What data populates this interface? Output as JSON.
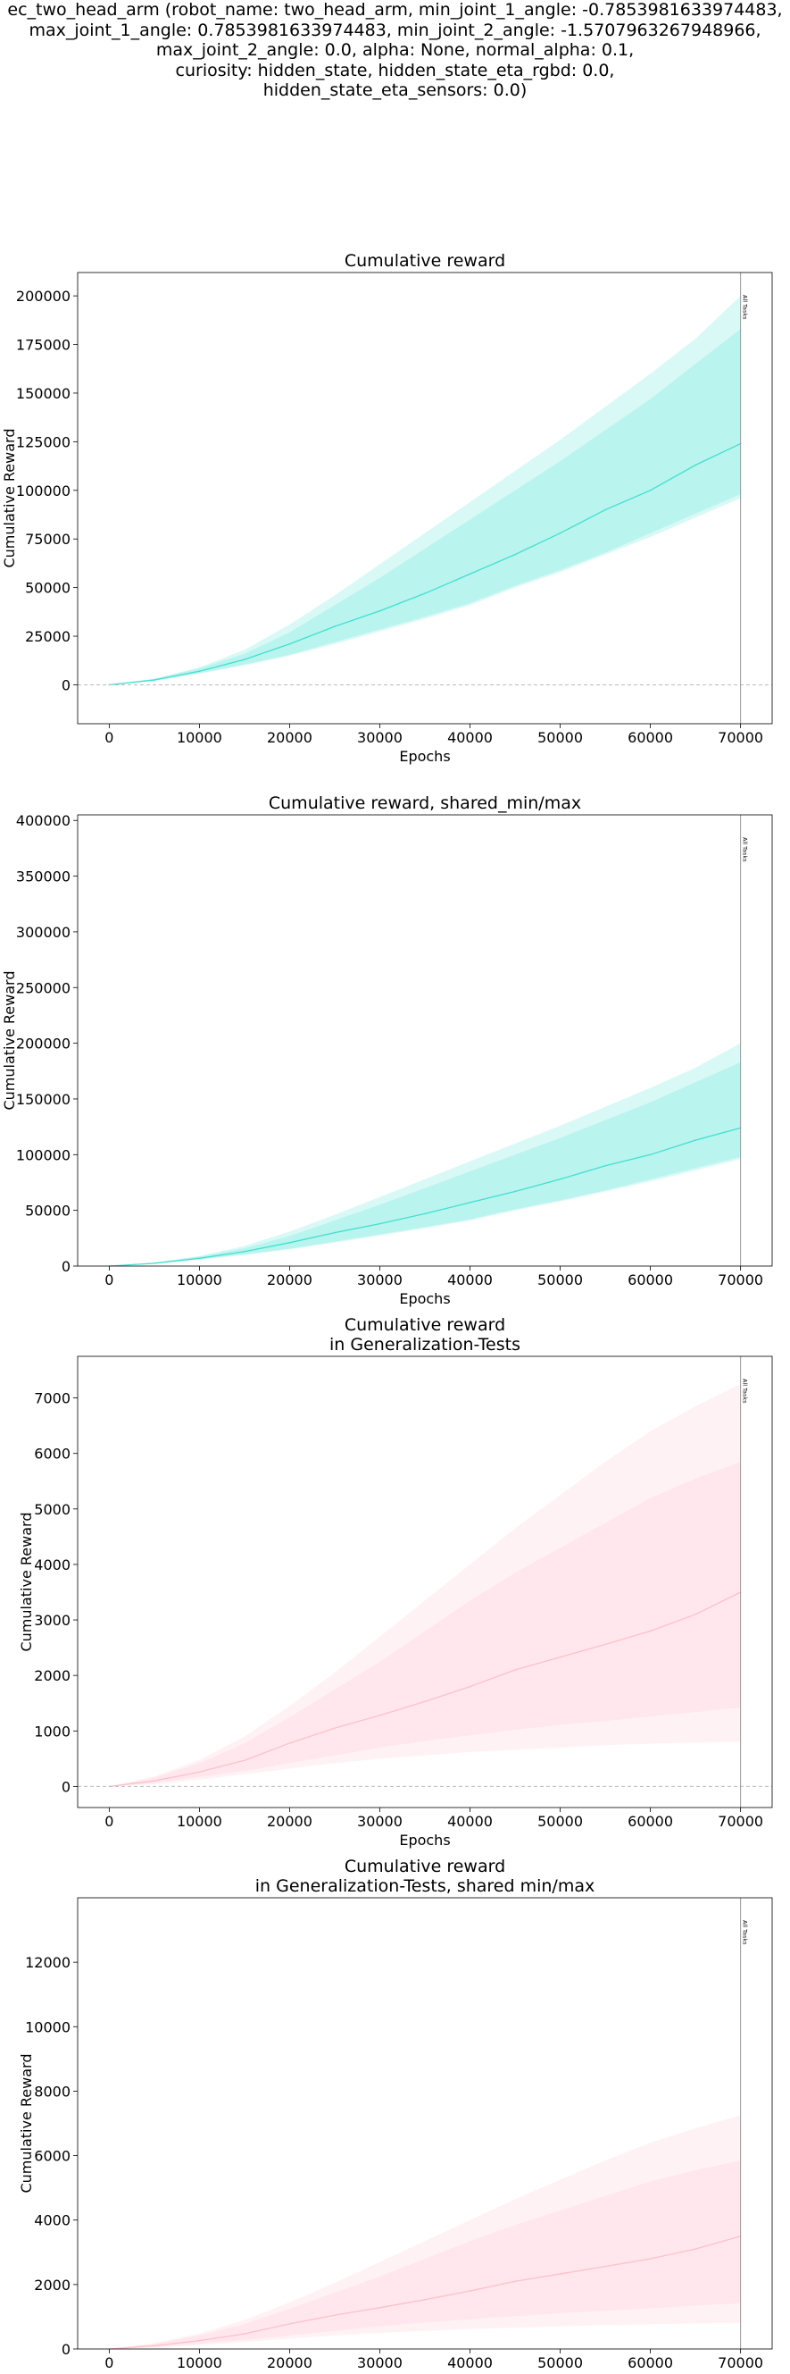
{
  "figure": {
    "suptitle": "ec_two_head_arm (robot_name: two_head_arm, min_joint_1_angle: -0.7853981633974483,\nmax_joint_1_angle: 0.7853981633974483, min_joint_2_angle: -1.5707963267948966,\nmax_joint_2_angle: 0.0, alpha: None, normal_alpha: 0.1,\ncuriosity: hidden_state, hidden_state_eta_rgbd: 0.0,\nhidden_state_eta_sensors: 0.0)"
  },
  "colors": {
    "train": "#40e0d0",
    "test": "#ffc0cb",
    "zero_line": "#bbbbbb",
    "vline": "#999999"
  },
  "chart_data": [
    {
      "type": "line",
      "title": "Cumulative reward",
      "xlabel": "Epochs",
      "ylabel": "Cumulative Reward",
      "xlim": [
        -3500,
        73500
      ],
      "ylim": [
        -20000,
        212000
      ],
      "xticks": [
        0,
        10000,
        20000,
        30000,
        40000,
        50000,
        60000,
        70000
      ],
      "yticks": [
        0,
        25000,
        50000,
        75000,
        100000,
        125000,
        150000,
        175000,
        200000
      ],
      "zero_line": true,
      "vline": {
        "x": 70000,
        "label": "All Tasks"
      },
      "series": [
        {
          "color": "#40e0d0",
          "x": [
            0,
            5000,
            10000,
            15000,
            20000,
            25000,
            30000,
            35000,
            40000,
            45000,
            50000,
            55000,
            60000,
            65000,
            70000
          ],
          "y": [
            0,
            2500,
            7000,
            13000,
            21000,
            30000,
            38000,
            47000,
            57000,
            67000,
            78000,
            90000,
            100000,
            113000,
            124000
          ],
          "band_inner": {
            "lower": [
              0,
              2000,
              6000,
              10500,
              15500,
              22000,
              28500,
              35000,
              42000,
              51000,
              59000,
              68000,
              78000,
              88000,
              98000
            ],
            "upper": [
              0,
              3000,
              8500,
              16000,
              27000,
              41000,
              55000,
              70000,
              85000,
              100000,
              115000,
              131000,
              147000,
              165000,
              183000
            ]
          },
          "band_outer": {
            "lower": [
              0,
              2000,
              5800,
              10000,
              15000,
              21000,
              27500,
              34000,
              41000,
              50000,
              58000,
              67000,
              76000,
              86000,
              96000
            ],
            "upper": [
              0,
              3200,
              9000,
              18000,
              31000,
              46000,
              62000,
              78000,
              94000,
              110000,
              126000,
              143000,
              160000,
              178000,
              200000
            ]
          }
        }
      ]
    },
    {
      "type": "line",
      "title": "Cumulative reward, shared_min/max",
      "xlabel": "Epochs",
      "ylabel": "Cumulative Reward",
      "xlim": [
        -3500,
        73500
      ],
      "ylim": [
        0,
        405000
      ],
      "xticks": [
        0,
        10000,
        20000,
        30000,
        40000,
        50000,
        60000,
        70000
      ],
      "yticks": [
        0,
        50000,
        100000,
        150000,
        200000,
        250000,
        300000,
        350000,
        400000
      ],
      "zero_line": false,
      "vline": {
        "x": 70000,
        "label": "All Tasks"
      },
      "series": [
        {
          "color": "#40e0d0",
          "x": [
            0,
            5000,
            10000,
            15000,
            20000,
            25000,
            30000,
            35000,
            40000,
            45000,
            50000,
            55000,
            60000,
            65000,
            70000
          ],
          "y": [
            0,
            2500,
            7000,
            13000,
            21000,
            30000,
            38000,
            47000,
            57000,
            67000,
            78000,
            90000,
            100000,
            113000,
            124000
          ],
          "band_inner": {
            "lower": [
              0,
              2000,
              6000,
              10500,
              15500,
              22000,
              28500,
              35000,
              42000,
              51000,
              59000,
              68000,
              78000,
              88000,
              98000
            ],
            "upper": [
              0,
              3000,
              8500,
              16000,
              27000,
              41000,
              55000,
              70000,
              85000,
              100000,
              115000,
              131000,
              147000,
              165000,
              183000
            ]
          },
          "band_outer": {
            "lower": [
              0,
              2000,
              5800,
              10000,
              15000,
              21000,
              27500,
              34000,
              41000,
              50000,
              58000,
              67000,
              76000,
              86000,
              96000
            ],
            "upper": [
              0,
              3200,
              9000,
              18000,
              31000,
              46000,
              62000,
              78000,
              94000,
              110000,
              126000,
              143000,
              160000,
              178000,
              200000
            ]
          }
        }
      ]
    },
    {
      "type": "line",
      "title": "Cumulative reward\nin Generalization-Tests",
      "xlabel": "Epochs",
      "ylabel": "Cumulative Reward",
      "xlim": [
        -3500,
        73500
      ],
      "ylim": [
        -380,
        7750
      ],
      "xticks": [
        0,
        10000,
        20000,
        30000,
        40000,
        50000,
        60000,
        70000
      ],
      "yticks": [
        0,
        1000,
        2000,
        3000,
        4000,
        5000,
        6000,
        7000
      ],
      "zero_line": true,
      "vline": {
        "x": 70000,
        "label": "All Tasks"
      },
      "series": [
        {
          "color": "#ffc0cb",
          "x": [
            0,
            5000,
            10000,
            15000,
            20000,
            25000,
            30000,
            35000,
            40000,
            45000,
            50000,
            55000,
            60000,
            65000,
            70000
          ],
          "y": [
            0,
            100,
            260,
            470,
            780,
            1050,
            1280,
            1530,
            1800,
            2100,
            2330,
            2560,
            2800,
            3100,
            3500
          ],
          "band_inner": {
            "lower": [
              0,
              60,
              170,
              280,
              420,
              560,
              700,
              820,
              920,
              1020,
              1110,
              1180,
              1260,
              1340,
              1420
            ],
            "upper": [
              0,
              160,
              420,
              780,
              1250,
              1750,
              2250,
              2800,
              3350,
              3850,
              4300,
              4750,
              5200,
              5550,
              5850
            ]
          },
          "band_outer": {
            "lower": [
              0,
              40,
              120,
              220,
              320,
              420,
              500,
              560,
              620,
              660,
              700,
              740,
              770,
              790,
              810
            ],
            "upper": [
              0,
              180,
              480,
              900,
              1450,
              2050,
              2700,
              3350,
              4000,
              4650,
              5250,
              5850,
              6400,
              6850,
              7250
            ]
          }
        }
      ]
    },
    {
      "type": "line",
      "title": "Cumulative reward\nin Generalization-Tests, shared min/max",
      "xlabel": "Epochs",
      "ylabel": "Cumulative Reward",
      "xlim": [
        -3500,
        73500
      ],
      "ylim": [
        0,
        14000
      ],
      "xticks": [
        0,
        10000,
        20000,
        30000,
        40000,
        50000,
        60000,
        70000
      ],
      "yticks": [
        0,
        2000,
        4000,
        6000,
        8000,
        10000,
        12000
      ],
      "zero_line": false,
      "vline": {
        "x": 70000,
        "label": "All Tasks"
      },
      "series": [
        {
          "color": "#ffc0cb",
          "x": [
            0,
            5000,
            10000,
            15000,
            20000,
            25000,
            30000,
            35000,
            40000,
            45000,
            50000,
            55000,
            60000,
            65000,
            70000
          ],
          "y": [
            0,
            100,
            260,
            470,
            780,
            1050,
            1280,
            1530,
            1800,
            2100,
            2330,
            2560,
            2800,
            3100,
            3500
          ],
          "band_inner": {
            "lower": [
              0,
              60,
              170,
              280,
              420,
              560,
              700,
              820,
              920,
              1020,
              1110,
              1180,
              1260,
              1340,
              1420
            ],
            "upper": [
              0,
              160,
              420,
              780,
              1250,
              1750,
              2250,
              2800,
              3350,
              3850,
              4300,
              4750,
              5200,
              5550,
              5850
            ]
          },
          "band_outer": {
            "lower": [
              0,
              40,
              120,
              220,
              320,
              420,
              500,
              560,
              620,
              660,
              700,
              740,
              770,
              790,
              810
            ],
            "upper": [
              0,
              180,
              480,
              900,
              1450,
              2050,
              2700,
              3350,
              4000,
              4650,
              5250,
              5850,
              6400,
              6850,
              7250
            ]
          }
        }
      ]
    }
  ]
}
